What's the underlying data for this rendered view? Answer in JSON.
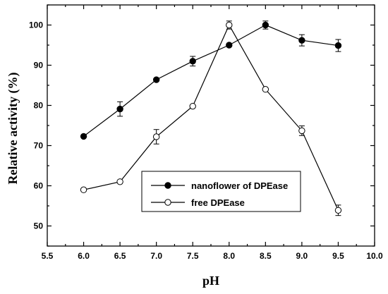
{
  "chart_data": {
    "type": "line",
    "xlabel": "pH",
    "ylabel": "Relative activity (%)",
    "xlim": [
      5.5,
      10.0
    ],
    "ylim": [
      45,
      105
    ],
    "xticks": [
      "5.5",
      "6.0",
      "6.5",
      "7.0",
      "7.5",
      "8.0",
      "8.5",
      "9.0",
      "9.5",
      "10.0"
    ],
    "yticks": [
      "50",
      "60",
      "70",
      "80",
      "90",
      "100"
    ],
    "legend_position": "bottom-center",
    "grid": false,
    "series": [
      {
        "name": "nanoflower of DPEase",
        "marker": "filled-circle",
        "color": "#000000",
        "x": [
          6.0,
          6.5,
          7.0,
          7.5,
          8.0,
          8.5,
          9.0,
          9.5
        ],
        "y": [
          72.3,
          79.1,
          86.4,
          91.0,
          95.0,
          100.0,
          96.2,
          94.9
        ],
        "err": [
          0.0,
          1.8,
          0.0,
          1.2,
          0.0,
          1.0,
          1.4,
          1.5
        ]
      },
      {
        "name": "free DPEase",
        "marker": "open-circle",
        "color": "#000000",
        "x": [
          6.0,
          6.5,
          7.0,
          7.5,
          8.0,
          8.5,
          9.0,
          9.5
        ],
        "y": [
          59.0,
          61.0,
          72.2,
          79.8,
          100.0,
          84.0,
          73.7,
          53.9
        ],
        "err": [
          0.0,
          0.0,
          1.8,
          0.0,
          1.0,
          0.0,
          1.2,
          1.3
        ]
      }
    ]
  }
}
